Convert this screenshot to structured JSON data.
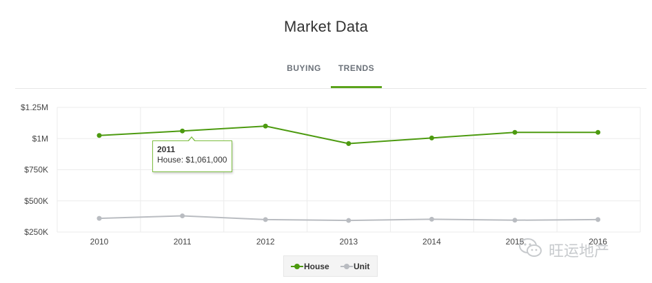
{
  "page": {
    "title": "Market Data"
  },
  "tabs": [
    {
      "label": "BUYING",
      "active": false
    },
    {
      "label": "TRENDS",
      "active": true
    }
  ],
  "colors": {
    "accent": "#5aa31a",
    "house": "#4c9a0f",
    "unit": "#b9bcc1",
    "grid": "#ebebeb",
    "text": "#333333",
    "muted": "#6b7179"
  },
  "tooltip": {
    "year": "2011",
    "text": "House: $1,061,000"
  },
  "legend": {
    "items": [
      {
        "label": "House",
        "icon": "line-dot-icon"
      },
      {
        "label": "Unit",
        "icon": "line-dot-icon"
      }
    ]
  },
  "watermark": {
    "text": "旺运地产",
    "icon": "wechat-icon"
  },
  "chart_data": {
    "type": "line",
    "categories": [
      "2010",
      "2011",
      "2012",
      "2013",
      "2014",
      "2015",
      "2016"
    ],
    "series": [
      {
        "name": "House",
        "values": [
          1025000,
          1061000,
          1100000,
          960000,
          1005000,
          1050000,
          1050000
        ]
      },
      {
        "name": "Unit",
        "values": [
          360000,
          380000,
          350000,
          343000,
          353000,
          345000,
          350000
        ]
      }
    ],
    "y_ticks": [
      {
        "value": 250000,
        "label": "$250K"
      },
      {
        "value": 500000,
        "label": "$500K"
      },
      {
        "value": 750000,
        "label": "$750K"
      },
      {
        "value": 1000000,
        "label": "$1M"
      },
      {
        "value": 1250000,
        "label": "$1.25M"
      }
    ],
    "ylim": [
      250000,
      1250000
    ],
    "grid": true,
    "legend_position": "bottom-center",
    "tooltip_index": 1
  }
}
